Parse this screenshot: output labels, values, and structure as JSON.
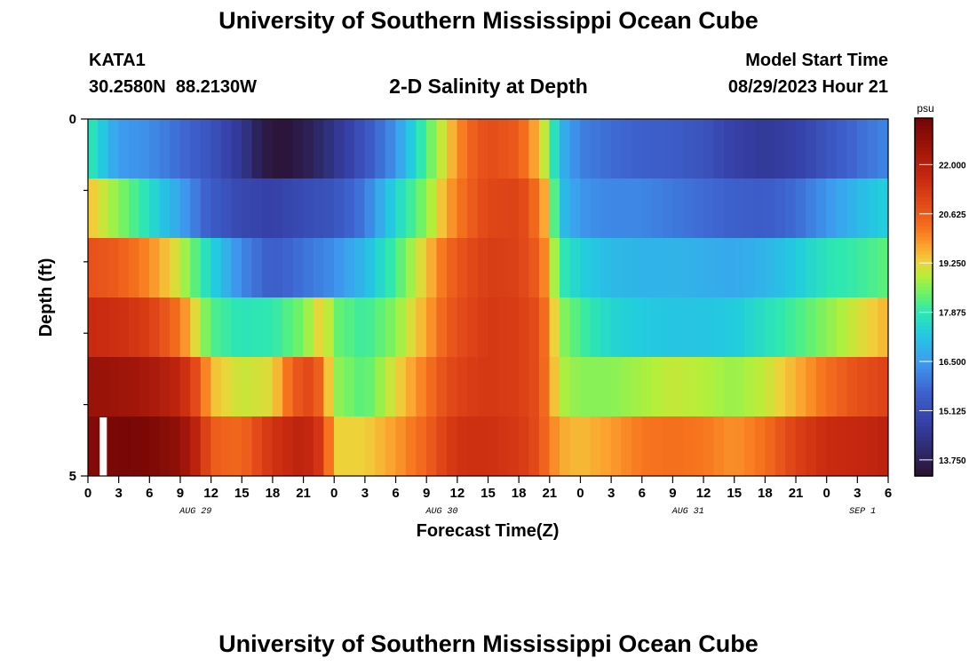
{
  "page": {
    "title": "University of Southern Mississippi Ocean Cube",
    "title_repeat": "University of Southern Mississippi Ocean Cube",
    "station_name": "KATA1",
    "station_coords": "30.2580N  88.2130W",
    "plot_title": "2-D Salinity at Depth",
    "model_start_label": "Model Start Time",
    "model_start_value": "08/29/2023 Hour 21"
  },
  "chart_data": {
    "type": "heatmap",
    "xlabel": "Forecast Time(Z)",
    "ylabel": "Depth (ft)",
    "x_tick_labels": [
      "0",
      "3",
      "6",
      "9",
      "12",
      "15",
      "18",
      "21",
      "0",
      "3",
      "6",
      "9",
      "12",
      "15",
      "18",
      "21",
      "0",
      "3",
      "6",
      "9",
      "12",
      "15",
      "18",
      "21",
      "0",
      "3",
      "6"
    ],
    "x_hours": [
      0,
      3,
      6,
      9,
      12,
      15,
      18,
      21,
      24,
      27,
      30,
      33,
      36,
      39,
      42,
      45,
      48,
      51,
      54,
      57,
      60,
      63,
      66,
      69,
      72,
      75,
      78
    ],
    "x_range": [
      0,
      78
    ],
    "date_labels": [
      {
        "label": "AUG 29",
        "hour": 10.5
      },
      {
        "label": "AUG 30",
        "hour": 34.5
      },
      {
        "label": "AUG 31",
        "hour": 58.5
      },
      {
        "label": "SEP 1",
        "hour": 75.5
      }
    ],
    "y_tick_labels": [
      "0",
      "5"
    ],
    "y_range": [
      0,
      5
    ],
    "depth_rows": [
      0,
      1,
      2,
      3,
      4,
      5
    ],
    "colorbar": {
      "unit": "psu",
      "range": [
        13.3,
        23.3
      ],
      "tick_labels": [
        "22.000",
        "20.625",
        "19.250",
        "17.875",
        "16.500",
        "15.125",
        "13.750"
      ],
      "tick_values": [
        22.0,
        20.625,
        19.25,
        17.875,
        16.5,
        15.125,
        13.75
      ]
    },
    "profiles": [
      {
        "depth": 0,
        "keyframes": [
          [
            0,
            18
          ],
          [
            3,
            16.5
          ],
          [
            6,
            16.3
          ],
          [
            9,
            15.8
          ],
          [
            12,
            15.3
          ],
          [
            15,
            14.5
          ],
          [
            17,
            13.6
          ],
          [
            19,
            13.4
          ],
          [
            22,
            13.8
          ],
          [
            24,
            14.4
          ],
          [
            27,
            15.3
          ],
          [
            30,
            16.4
          ],
          [
            33,
            18.2
          ],
          [
            35,
            19.3
          ],
          [
            37,
            20.4
          ],
          [
            39,
            20.9
          ],
          [
            42,
            20.6
          ],
          [
            44,
            19.5
          ],
          [
            45,
            18.5
          ],
          [
            46,
            17
          ],
          [
            48,
            16.1
          ],
          [
            51,
            15.8
          ],
          [
            54,
            15.6
          ],
          [
            57,
            15.5
          ],
          [
            60,
            15.3
          ],
          [
            63,
            14.8
          ],
          [
            66,
            14.6
          ],
          [
            69,
            14.8
          ],
          [
            72,
            15.3
          ],
          [
            75,
            15.8
          ],
          [
            78,
            16.2
          ]
        ]
      },
      {
        "depth": 1,
        "keyframes": [
          [
            0,
            19.5
          ],
          [
            3,
            18.6
          ],
          [
            6,
            17.7
          ],
          [
            9,
            16.6
          ],
          [
            12,
            15.5
          ],
          [
            15,
            15.0
          ],
          [
            18,
            14.8
          ],
          [
            21,
            15.1
          ],
          [
            24,
            15.3
          ],
          [
            27,
            16.0
          ],
          [
            30,
            17.5
          ],
          [
            33,
            18.6
          ],
          [
            35,
            19.7
          ],
          [
            37,
            20.5
          ],
          [
            39,
            21.0
          ],
          [
            42,
            21.1
          ],
          [
            44,
            20.2
          ],
          [
            45,
            19.2
          ],
          [
            46,
            17.2
          ],
          [
            48,
            16.4
          ],
          [
            51,
            16.2
          ],
          [
            54,
            16.2
          ],
          [
            57,
            16.0
          ],
          [
            60,
            15.8
          ],
          [
            63,
            15.6
          ],
          [
            66,
            15.5
          ],
          [
            69,
            15.8
          ],
          [
            72,
            16.4
          ],
          [
            75,
            17.0
          ],
          [
            78,
            17.4
          ]
        ]
      },
      {
        "depth": 2,
        "keyframes": [
          [
            0,
            20.8
          ],
          [
            3,
            20.6
          ],
          [
            6,
            20.0
          ],
          [
            9,
            19.0
          ],
          [
            12,
            17.5
          ],
          [
            15,
            16.2
          ],
          [
            18,
            15.5
          ],
          [
            21,
            15.9
          ],
          [
            24,
            16.3
          ],
          [
            27,
            17.0
          ],
          [
            30,
            18.1
          ],
          [
            33,
            19.4
          ],
          [
            35,
            20.4
          ],
          [
            37,
            20.9
          ],
          [
            39,
            21.2
          ],
          [
            42,
            21.1
          ],
          [
            44,
            20.5
          ],
          [
            45,
            19.6
          ],
          [
            46,
            18.0
          ],
          [
            48,
            17.4
          ],
          [
            51,
            17.0
          ],
          [
            54,
            16.9
          ],
          [
            57,
            16.9
          ],
          [
            60,
            16.8
          ],
          [
            63,
            16.7
          ],
          [
            66,
            16.9
          ],
          [
            69,
            17.3
          ],
          [
            72,
            17.8
          ],
          [
            75,
            18.0
          ],
          [
            78,
            18.3
          ]
        ]
      },
      {
        "depth": 3,
        "keyframes": [
          [
            0,
            21.6
          ],
          [
            3,
            21.5
          ],
          [
            6,
            21.2
          ],
          [
            9,
            20.2
          ],
          [
            12,
            18.2
          ],
          [
            15,
            17.8
          ],
          [
            18,
            17.9
          ],
          [
            21,
            18.5
          ],
          [
            23,
            19.5
          ],
          [
            24,
            18.4
          ],
          [
            27,
            18.0
          ],
          [
            30,
            18.6
          ],
          [
            33,
            19.7
          ],
          [
            35,
            20.6
          ],
          [
            37,
            21.0
          ],
          [
            39,
            21.3
          ],
          [
            42,
            21.2
          ],
          [
            44,
            20.8
          ],
          [
            45,
            19.9
          ],
          [
            46,
            18.7
          ],
          [
            48,
            18.1
          ],
          [
            51,
            17.5
          ],
          [
            54,
            17.3
          ],
          [
            57,
            17.2
          ],
          [
            60,
            17.2
          ],
          [
            63,
            17.3
          ],
          [
            66,
            17.7
          ],
          [
            69,
            18.1
          ],
          [
            72,
            18.6
          ],
          [
            75,
            19.1
          ],
          [
            78,
            19.6
          ]
        ]
      },
      {
        "depth": 4,
        "keyframes": [
          [
            0,
            22.6
          ],
          [
            3,
            22.5
          ],
          [
            6,
            22.3
          ],
          [
            9,
            21.8
          ],
          [
            11,
            20.6
          ],
          [
            12,
            19.5
          ],
          [
            15,
            19.0
          ],
          [
            18,
            19.2
          ],
          [
            20,
            20.6
          ],
          [
            22,
            21.0
          ],
          [
            23,
            20.1
          ],
          [
            24,
            18.7
          ],
          [
            27,
            18.2
          ],
          [
            30,
            19.2
          ],
          [
            33,
            20.2
          ],
          [
            35,
            20.9
          ],
          [
            37,
            21.2
          ],
          [
            39,
            21.3
          ],
          [
            42,
            21.2
          ],
          [
            44,
            20.8
          ],
          [
            45,
            20.0
          ],
          [
            46,
            18.9
          ],
          [
            48,
            18.6
          ],
          [
            51,
            18.6
          ],
          [
            54,
            18.8
          ],
          [
            57,
            19.0
          ],
          [
            60,
            18.9
          ],
          [
            63,
            18.7
          ],
          [
            66,
            19.0
          ],
          [
            69,
            19.6
          ],
          [
            72,
            20.3
          ],
          [
            75,
            20.8
          ],
          [
            78,
            21.1
          ]
        ]
      },
      {
        "depth": 5,
        "keyframes": [
          [
            0,
            23.0
          ],
          [
            1,
            23.0
          ],
          [
            3,
            23.2
          ],
          [
            6,
            23.1
          ],
          [
            9,
            22.7
          ],
          [
            11,
            21.6
          ],
          [
            12,
            20.6
          ],
          [
            15,
            20.4
          ],
          [
            18,
            21.4
          ],
          [
            21,
            21.9
          ],
          [
            23,
            21.2
          ],
          [
            24,
            19.3
          ],
          [
            27,
            19.3
          ],
          [
            30,
            19.8
          ],
          [
            33,
            20.5
          ],
          [
            35,
            21.2
          ],
          [
            37,
            21.5
          ],
          [
            39,
            21.5
          ],
          [
            42,
            21.3
          ],
          [
            44,
            20.8
          ],
          [
            45,
            20.2
          ],
          [
            46,
            19.7
          ],
          [
            48,
            19.5
          ],
          [
            51,
            19.8
          ],
          [
            54,
            20.2
          ],
          [
            57,
            20.3
          ],
          [
            60,
            20.2
          ],
          [
            63,
            19.9
          ],
          [
            66,
            20.3
          ],
          [
            69,
            21.1
          ],
          [
            72,
            21.6
          ],
          [
            75,
            21.7
          ],
          [
            78,
            21.9
          ]
        ]
      }
    ],
    "missing_cells": [
      {
        "depth": 5,
        "hour": 1.5
      }
    ],
    "colormap": [
      [
        13.3,
        "#2b0f2e"
      ],
      [
        14.0,
        "#2d2a6b"
      ],
      [
        14.8,
        "#3540a6"
      ],
      [
        15.7,
        "#3e64cf"
      ],
      [
        16.5,
        "#3e9cf0"
      ],
      [
        17.3,
        "#22cbe0"
      ],
      [
        17.9,
        "#2ee8b0"
      ],
      [
        18.4,
        "#6af26a"
      ],
      [
        18.9,
        "#b6ef3a"
      ],
      [
        19.3,
        "#eed23a"
      ],
      [
        19.7,
        "#fba731"
      ],
      [
        20.2,
        "#f7751e"
      ],
      [
        20.8,
        "#e6501a"
      ],
      [
        21.6,
        "#c92a10"
      ],
      [
        22.4,
        "#a2160a"
      ],
      [
        23.3,
        "#720505"
      ]
    ],
    "colors": {
      "missing": "#ffffff",
      "frame": "#000000",
      "colorbar_tick": "#ffffff"
    }
  }
}
